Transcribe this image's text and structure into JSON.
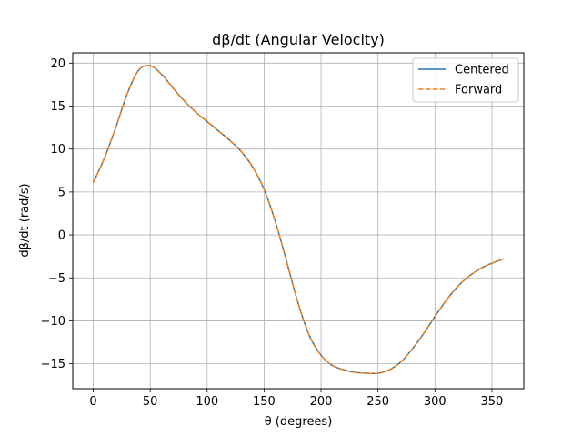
{
  "chart_data": {
    "type": "line",
    "title": "dβ/dt (Angular Velocity)",
    "xlabel": "θ (degrees)",
    "ylabel": "dβ/dt (rad/s)",
    "xlim": [
      -18,
      378
    ],
    "ylim": [
      -17.9,
      21.2
    ],
    "xticks": [
      0,
      50,
      100,
      150,
      200,
      250,
      300,
      350
    ],
    "yticks": [
      -15,
      -10,
      -5,
      0,
      5,
      10,
      15,
      20
    ],
    "grid": true,
    "legend_position": "top-right",
    "x": [
      0,
      10,
      20,
      30,
      40,
      50,
      60,
      70,
      80,
      90,
      100,
      110,
      120,
      130,
      140,
      150,
      160,
      170,
      180,
      190,
      200,
      210,
      220,
      230,
      240,
      250,
      260,
      270,
      280,
      290,
      300,
      310,
      320,
      330,
      340,
      350,
      360
    ],
    "series": [
      {
        "name": "Centered",
        "color": "#1f77b4",
        "style": "solid",
        "values": [
          6.1,
          9.0,
          12.6,
          16.5,
          19.2,
          19.7,
          18.7,
          17.1,
          15.6,
          14.3,
          13.2,
          12.1,
          11.0,
          9.7,
          7.9,
          5.3,
          1.5,
          -3.2,
          -8.0,
          -11.8,
          -14.0,
          -15.2,
          -15.7,
          -16.0,
          -16.1,
          -16.1,
          -15.7,
          -14.8,
          -13.3,
          -11.5,
          -9.5,
          -7.6,
          -6.0,
          -4.8,
          -3.9,
          -3.3,
          -2.8
        ]
      },
      {
        "name": "Forward",
        "color": "#ff7f0e",
        "style": "dashed",
        "values": [
          6.1,
          9.0,
          12.6,
          16.5,
          19.2,
          19.7,
          18.7,
          17.1,
          15.6,
          14.3,
          13.2,
          12.1,
          11.0,
          9.7,
          7.9,
          5.3,
          1.5,
          -3.2,
          -8.0,
          -11.8,
          -14.0,
          -15.2,
          -15.7,
          -16.0,
          -16.1,
          -16.1,
          -15.7,
          -14.8,
          -13.3,
          -11.5,
          -9.5,
          -7.6,
          -6.0,
          -4.8,
          -3.9,
          -3.3,
          -2.8
        ]
      }
    ]
  }
}
